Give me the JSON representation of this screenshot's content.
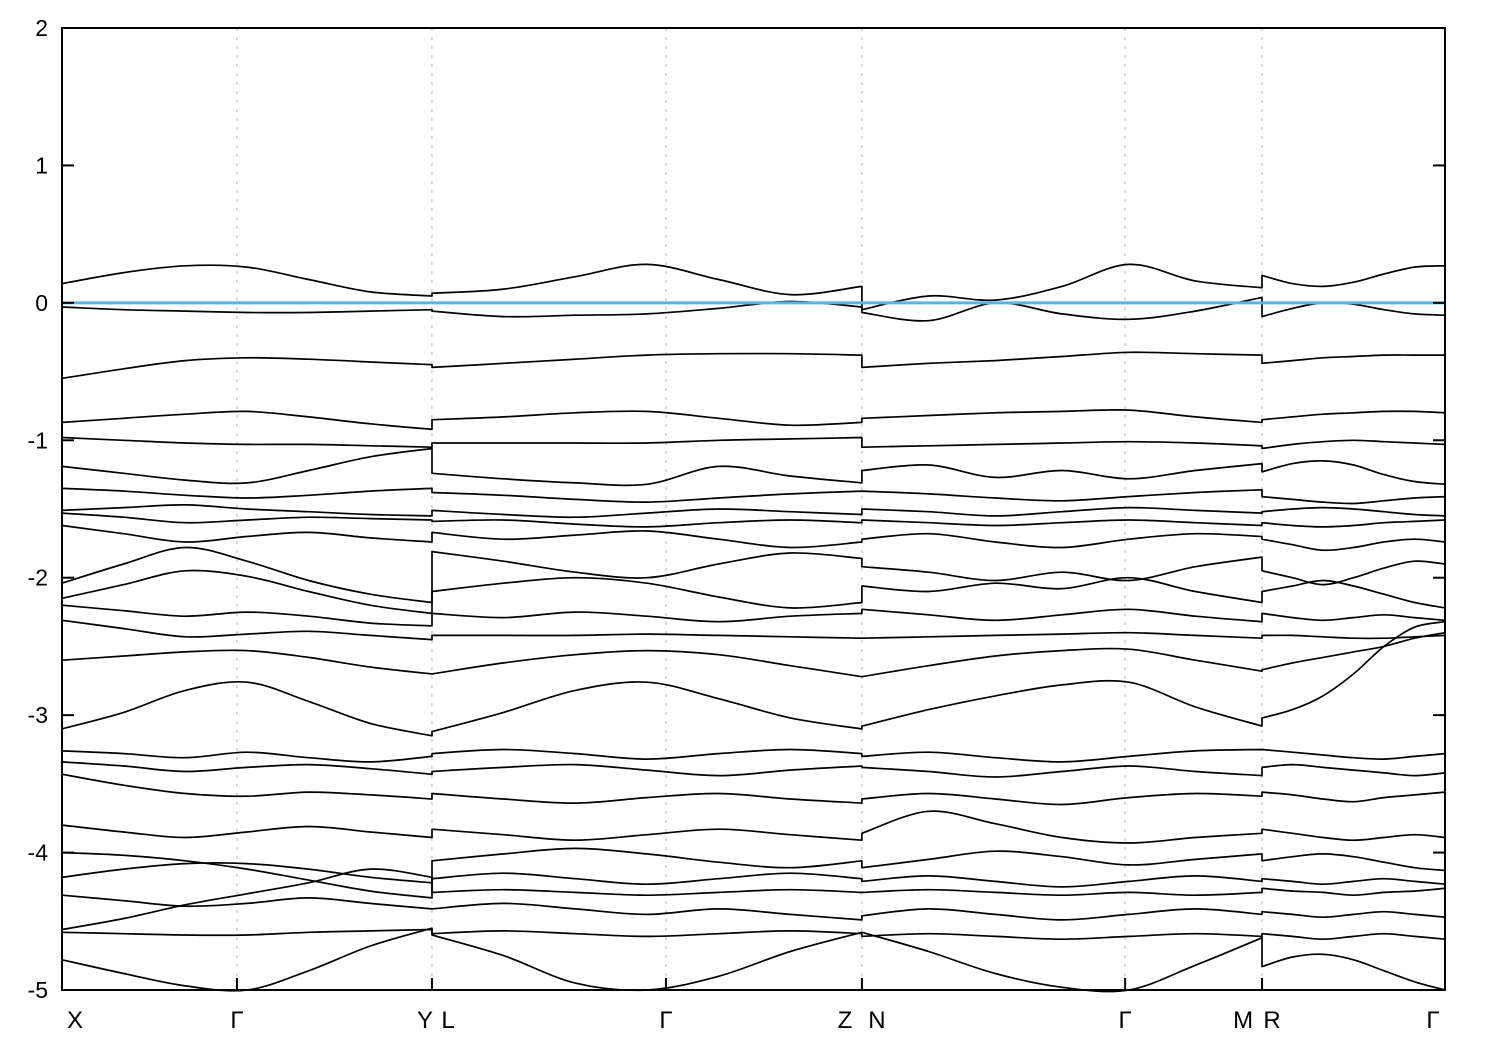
{
  "chart_data": {
    "type": "line",
    "title": "",
    "xlabel": "",
    "ylabel": "",
    "ylim": [
      -5,
      2
    ],
    "grid": "vertical-dashed-at-kpoints",
    "legend": "none",
    "yticks": [
      2,
      1,
      0,
      -1,
      -2,
      -3,
      -4,
      -5
    ],
    "band_color": "#000000",
    "fermi_color": "#56b4e9",
    "grid_color": "#b5b5b5",
    "axis_color": "#000000",
    "fermi_energy": 0.0,
    "kpoint_tick_positions": [
      0.0,
      0.1265,
      0.2675,
      0.4367,
      0.5784,
      0.7687,
      0.8677,
      1.0
    ],
    "gridline_positions": [
      0.1265,
      0.2675,
      0.4367,
      0.5784,
      0.7687,
      0.8677
    ],
    "kpoint_labels": [
      {
        "label": "X",
        "x": 0.0094
      },
      {
        "label": "Γ",
        "x": 0.1265
      },
      {
        "label": "Y",
        "x": 0.2625
      },
      {
        "label": "L",
        "x": 0.2791
      },
      {
        "label": "Γ",
        "x": 0.4367
      },
      {
        "label": "Z",
        "x": 0.5661
      },
      {
        "label": "N",
        "x": 0.5892
      },
      {
        "label": "Γ",
        "x": 0.7687
      },
      {
        "label": "M",
        "x": 0.854
      },
      {
        "label": "R",
        "x": 0.8749
      },
      {
        "label": "Γ",
        "x": 0.9913
      }
    ],
    "panel_bounds": [
      [
        0.0,
        0.2675
      ],
      [
        0.2675,
        0.5784
      ],
      [
        0.5784,
        0.8677
      ],
      [
        0.8677,
        1.0
      ]
    ],
    "panel_paths": [
      "X-G-Y",
      "L-G-Z",
      "N-G-M",
      "R-G"
    ],
    "bands": [
      [
        [
          0.14,
          0.22,
          0.27,
          0.26,
          0.17,
          0.08,
          0.05
        ],
        [
          0.07,
          0.1,
          0.19,
          0.28,
          0.17,
          0.06,
          0.12
        ],
        [
          -0.05,
          0.05,
          0.02,
          0.12,
          0.28,
          0.16,
          0.11
        ],
        [
          0.2,
          0.14,
          0.12,
          0.15,
          0.21,
          0.26,
          0.27
        ]
      ],
      [
        [
          -0.03,
          -0.05,
          -0.06,
          -0.07,
          -0.07,
          -0.06,
          -0.05
        ],
        [
          -0.06,
          -0.1,
          -0.09,
          -0.08,
          -0.04,
          0.01,
          -0.03
        ],
        [
          -0.07,
          -0.13,
          0.0,
          -0.08,
          -0.12,
          -0.06,
          0.04
        ],
        [
          -0.1,
          -0.04,
          0.0,
          -0.01,
          -0.05,
          -0.08,
          -0.09
        ]
      ],
      [
        [
          -0.55,
          -0.48,
          -0.42,
          -0.4,
          -0.41,
          -0.43,
          -0.45
        ],
        [
          -0.47,
          -0.44,
          -0.41,
          -0.38,
          -0.37,
          -0.37,
          -0.38
        ],
        [
          -0.47,
          -0.44,
          -0.42,
          -0.39,
          -0.36,
          -0.37,
          -0.38
        ],
        [
          -0.44,
          -0.42,
          -0.4,
          -0.39,
          -0.38,
          -0.38,
          -0.38
        ]
      ],
      [
        [
          -0.87,
          -0.84,
          -0.81,
          -0.79,
          -0.83,
          -0.88,
          -0.92
        ],
        [
          -0.85,
          -0.83,
          -0.8,
          -0.79,
          -0.84,
          -0.89,
          -0.87
        ],
        [
          -0.84,
          -0.82,
          -0.8,
          -0.79,
          -0.78,
          -0.83,
          -0.87
        ],
        [
          -0.85,
          -0.83,
          -0.81,
          -0.8,
          -0.79,
          -0.79,
          -0.8
        ]
      ],
      [
        [
          -0.98,
          -1.0,
          -1.02,
          -1.03,
          -1.03,
          -1.04,
          -1.05
        ],
        [
          -1.02,
          -1.02,
          -1.02,
          -1.02,
          -1.0,
          -0.99,
          -0.98
        ],
        [
          -1.05,
          -1.04,
          -1.03,
          -1.02,
          -1.01,
          -1.02,
          -1.04
        ],
        [
          -1.06,
          -1.03,
          -1.01,
          -1.0,
          -1.01,
          -1.02,
          -1.03
        ]
      ],
      [
        [
          -1.19,
          -1.24,
          -1.29,
          -1.31,
          -1.22,
          -1.12,
          -1.06
        ],
        [
          -1.24,
          -1.28,
          -1.31,
          -1.32,
          -1.19,
          -1.26,
          -1.31
        ],
        [
          -1.22,
          -1.18,
          -1.27,
          -1.22,
          -1.28,
          -1.22,
          -1.17
        ],
        [
          -1.23,
          -1.17,
          -1.15,
          -1.18,
          -1.25,
          -1.3,
          -1.32
        ]
      ],
      [
        [
          -1.35,
          -1.37,
          -1.4,
          -1.42,
          -1.4,
          -1.37,
          -1.35
        ],
        [
          -1.38,
          -1.4,
          -1.43,
          -1.45,
          -1.42,
          -1.39,
          -1.37
        ],
        [
          -1.37,
          -1.39,
          -1.42,
          -1.44,
          -1.41,
          -1.38,
          -1.36
        ],
        [
          -1.41,
          -1.43,
          -1.45,
          -1.46,
          -1.44,
          -1.42,
          -1.41
        ]
      ],
      [
        [
          -1.51,
          -1.49,
          -1.47,
          -1.5,
          -1.52,
          -1.54,
          -1.55
        ],
        [
          -1.51,
          -1.54,
          -1.56,
          -1.53,
          -1.5,
          -1.52,
          -1.54
        ],
        [
          -1.5,
          -1.52,
          -1.55,
          -1.52,
          -1.49,
          -1.51,
          -1.53
        ],
        [
          -1.52,
          -1.5,
          -1.49,
          -1.5,
          -1.52,
          -1.54,
          -1.55
        ]
      ],
      [
        [
          -1.53,
          -1.56,
          -1.6,
          -1.58,
          -1.56,
          -1.57,
          -1.58
        ],
        [
          -1.59,
          -1.58,
          -1.61,
          -1.63,
          -1.6,
          -1.58,
          -1.6
        ],
        [
          -1.58,
          -1.6,
          -1.62,
          -1.6,
          -1.58,
          -1.6,
          -1.62
        ],
        [
          -1.6,
          -1.62,
          -1.63,
          -1.62,
          -1.6,
          -1.59,
          -1.58
        ]
      ],
      [
        [
          -1.62,
          -1.68,
          -1.74,
          -1.7,
          -1.67,
          -1.71,
          -1.74
        ],
        [
          -1.67,
          -1.72,
          -1.69,
          -1.66,
          -1.72,
          -1.78,
          -1.74
        ],
        [
          -1.72,
          -1.68,
          -1.74,
          -1.78,
          -1.72,
          -1.68,
          -1.7
        ],
        [
          -1.72,
          -1.76,
          -1.8,
          -1.78,
          -1.74,
          -1.72,
          -1.74
        ]
      ],
      [
        [
          -2.04,
          -1.9,
          -1.78,
          -1.88,
          -2.02,
          -2.12,
          -2.18
        ],
        [
          -1.81,
          -1.88,
          -1.96,
          -2.0,
          -1.9,
          -1.82,
          -1.86
        ],
        [
          -1.92,
          -1.96,
          -2.02,
          -1.96,
          -2.02,
          -1.92,
          -1.85
        ],
        [
          -1.95,
          -2.0,
          -2.05,
          -2.0,
          -1.93,
          -1.88,
          -1.9
        ]
      ],
      [
        [
          -2.15,
          -2.05,
          -1.95,
          -1.99,
          -2.1,
          -2.2,
          -2.26
        ],
        [
          -2.1,
          -2.04,
          -2.0,
          -2.04,
          -2.14,
          -2.22,
          -2.18
        ],
        [
          -2.06,
          -2.1,
          -2.04,
          -2.08,
          -2.0,
          -2.1,
          -2.18
        ],
        [
          -2.1,
          -2.06,
          -2.02,
          -2.06,
          -2.12,
          -2.18,
          -2.22
        ]
      ],
      [
        [
          -2.2,
          -2.24,
          -2.28,
          -2.25,
          -2.28,
          -2.33,
          -2.35
        ],
        [
          -2.26,
          -2.29,
          -2.25,
          -2.28,
          -2.32,
          -2.28,
          -2.26
        ],
        [
          -2.23,
          -2.27,
          -2.31,
          -2.27,
          -2.23,
          -2.28,
          -2.32
        ],
        [
          -2.26,
          -2.29,
          -2.31,
          -2.29,
          -2.27,
          -2.29,
          -2.31
        ]
      ],
      [
        [
          -2.31,
          -2.37,
          -2.43,
          -2.41,
          -2.39,
          -2.42,
          -2.45
        ],
        [
          -2.42,
          -2.42,
          -2.42,
          -2.41,
          -2.42,
          -2.43,
          -2.44
        ],
        [
          -2.44,
          -2.43,
          -2.42,
          -2.41,
          -2.4,
          -2.42,
          -2.44
        ],
        [
          -2.42,
          -2.42,
          -2.43,
          -2.44,
          -2.44,
          -2.43,
          -2.42
        ]
      ],
      [
        [
          -2.6,
          -2.57,
          -2.54,
          -2.53,
          -2.58,
          -2.65,
          -2.7
        ],
        [
          -2.7,
          -2.62,
          -2.56,
          -2.53,
          -2.56,
          -2.64,
          -2.72
        ],
        [
          -2.72,
          -2.64,
          -2.57,
          -2.53,
          -2.52,
          -2.6,
          -2.68
        ],
        [
          -2.67,
          -2.62,
          -2.58,
          -2.54,
          -2.5,
          -2.44,
          -2.4
        ]
      ],
      [
        [
          -3.1,
          -2.98,
          -2.82,
          -2.76,
          -2.9,
          -3.06,
          -3.15
        ],
        [
          -3.12,
          -2.98,
          -2.82,
          -2.76,
          -2.88,
          -3.02,
          -3.1
        ],
        [
          -3.08,
          -2.96,
          -2.86,
          -2.78,
          -2.76,
          -2.94,
          -3.08
        ],
        [
          -3.02,
          -2.96,
          -2.86,
          -2.7,
          -2.5,
          -2.36,
          -2.32
        ]
      ],
      [
        [
          -3.26,
          -3.28,
          -3.31,
          -3.27,
          -3.31,
          -3.34,
          -3.3
        ],
        [
          -3.28,
          -3.25,
          -3.28,
          -3.32,
          -3.28,
          -3.25,
          -3.28
        ],
        [
          -3.3,
          -3.27,
          -3.31,
          -3.34,
          -3.3,
          -3.26,
          -3.25
        ],
        [
          -3.25,
          -3.27,
          -3.29,
          -3.31,
          -3.32,
          -3.3,
          -3.28
        ]
      ],
      [
        [
          -3.34,
          -3.37,
          -3.41,
          -3.38,
          -3.36,
          -3.39,
          -3.43
        ],
        [
          -3.41,
          -3.38,
          -3.36,
          -3.4,
          -3.44,
          -3.4,
          -3.37
        ],
        [
          -3.38,
          -3.41,
          -3.45,
          -3.41,
          -3.37,
          -3.41,
          -3.44
        ],
        [
          -3.38,
          -3.36,
          -3.38,
          -3.4,
          -3.42,
          -3.44,
          -3.42
        ]
      ],
      [
        [
          -3.43,
          -3.51,
          -3.57,
          -3.59,
          -3.56,
          -3.58,
          -3.61
        ],
        [
          -3.57,
          -3.61,
          -3.64,
          -3.6,
          -3.57,
          -3.61,
          -3.64
        ],
        [
          -3.61,
          -3.57,
          -3.61,
          -3.65,
          -3.6,
          -3.57,
          -3.59
        ],
        [
          -3.56,
          -3.58,
          -3.61,
          -3.63,
          -3.6,
          -3.58,
          -3.56
        ]
      ],
      [
        [
          -3.8,
          -3.85,
          -3.89,
          -3.85,
          -3.81,
          -3.85,
          -3.89
        ],
        [
          -3.83,
          -3.87,
          -3.91,
          -3.87,
          -3.83,
          -3.87,
          -3.91
        ],
        [
          -3.86,
          -3.7,
          -3.79,
          -3.89,
          -3.93,
          -3.89,
          -3.86
        ],
        [
          -3.83,
          -3.86,
          -3.89,
          -3.91,
          -3.89,
          -3.87,
          -3.89
        ]
      ],
      [
        [
          -4.0,
          -4.02,
          -4.06,
          -4.12,
          -4.2,
          -4.28,
          -4.33
        ],
        [
          -4.06,
          -4.01,
          -3.97,
          -4.01,
          -4.07,
          -4.11,
          -4.06
        ],
        [
          -4.11,
          -4.05,
          -3.99,
          -4.03,
          -4.09,
          -4.05,
          -4.01
        ],
        [
          -4.06,
          -4.03,
          -4.01,
          -4.03,
          -4.07,
          -4.11,
          -4.13
        ]
      ],
      [
        [
          -4.18,
          -4.12,
          -4.08,
          -4.08,
          -4.12,
          -4.18,
          -4.22
        ],
        [
          -4.19,
          -4.15,
          -4.19,
          -4.23,
          -4.19,
          -4.15,
          -4.19
        ],
        [
          -4.21,
          -4.17,
          -4.21,
          -4.25,
          -4.21,
          -4.17,
          -4.21
        ],
        [
          -4.19,
          -4.21,
          -4.23,
          -4.21,
          -4.19,
          -4.21,
          -4.23
        ]
      ],
      [
        [
          -4.56,
          -4.48,
          -4.38,
          -4.3,
          -4.22,
          -4.12,
          -4.18
        ],
        [
          -4.29,
          -4.27,
          -4.29,
          -4.31,
          -4.29,
          -4.27,
          -4.29
        ],
        [
          -4.29,
          -4.27,
          -4.29,
          -4.31,
          -4.29,
          -4.31,
          -4.29
        ],
        [
          -4.26,
          -4.28,
          -4.29,
          -4.31,
          -4.29,
          -4.28,
          -4.26
        ]
      ],
      [
        [
          -4.31,
          -4.35,
          -4.39,
          -4.37,
          -4.33,
          -4.37,
          -4.41
        ],
        [
          -4.41,
          -4.37,
          -4.41,
          -4.45,
          -4.41,
          -4.45,
          -4.49
        ],
        [
          -4.46,
          -4.41,
          -4.45,
          -4.49,
          -4.45,
          -4.41,
          -4.45
        ],
        [
          -4.43,
          -4.45,
          -4.47,
          -4.45,
          -4.43,
          -4.45,
          -4.47
        ]
      ],
      [
        [
          -4.58,
          -4.59,
          -4.6,
          -4.6,
          -4.58,
          -4.57,
          -4.56
        ],
        [
          -4.59,
          -4.57,
          -4.59,
          -4.61,
          -4.59,
          -4.57,
          -4.59
        ],
        [
          -4.61,
          -4.59,
          -4.61,
          -4.63,
          -4.61,
          -4.59,
          -4.61
        ],
        [
          -4.59,
          -4.61,
          -4.63,
          -4.61,
          -4.59,
          -4.61,
          -4.63
        ]
      ],
      [
        [
          -4.78,
          -4.88,
          -4.97,
          -5.0,
          -4.86,
          -4.68,
          -4.55
        ],
        [
          -4.6,
          -4.75,
          -4.95,
          -5.0,
          -4.9,
          -4.72,
          -4.58
        ],
        [
          -4.58,
          -4.72,
          -4.88,
          -4.98,
          -5.0,
          -4.82,
          -4.62
        ],
        [
          -4.83,
          -4.76,
          -4.74,
          -4.78,
          -4.86,
          -4.94,
          -5.0
        ]
      ]
    ]
  }
}
